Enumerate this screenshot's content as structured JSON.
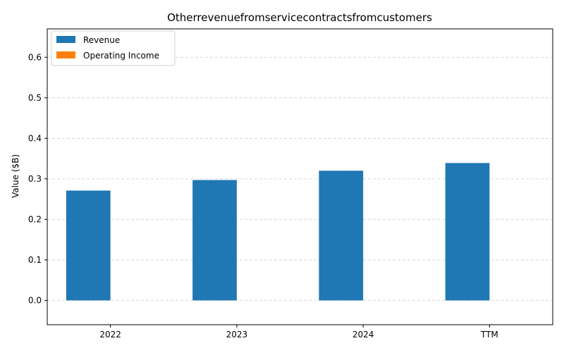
{
  "chart_data": {
    "type": "bar",
    "title": "Otherrevenuefromservicecontractsfromcustomers",
    "xlabel": "",
    "ylabel": "Value ($B)",
    "categories": [
      "2022",
      "2023",
      "2024",
      "TTM"
    ],
    "series": [
      {
        "name": "Revenue",
        "values": [
          0.271,
          0.297,
          0.32,
          0.339
        ],
        "color": "#1f77b4"
      },
      {
        "name": "Operating Income",
        "values": [
          0,
          0,
          0,
          0
        ],
        "color": "#ff7f0e"
      }
    ],
    "ylim": [
      -0.06,
      0.67
    ],
    "yticks": [
      "0.0",
      "0.1",
      "0.2",
      "0.3",
      "0.4",
      "0.5",
      "0.6"
    ],
    "grid": true,
    "legend": "top-left"
  }
}
